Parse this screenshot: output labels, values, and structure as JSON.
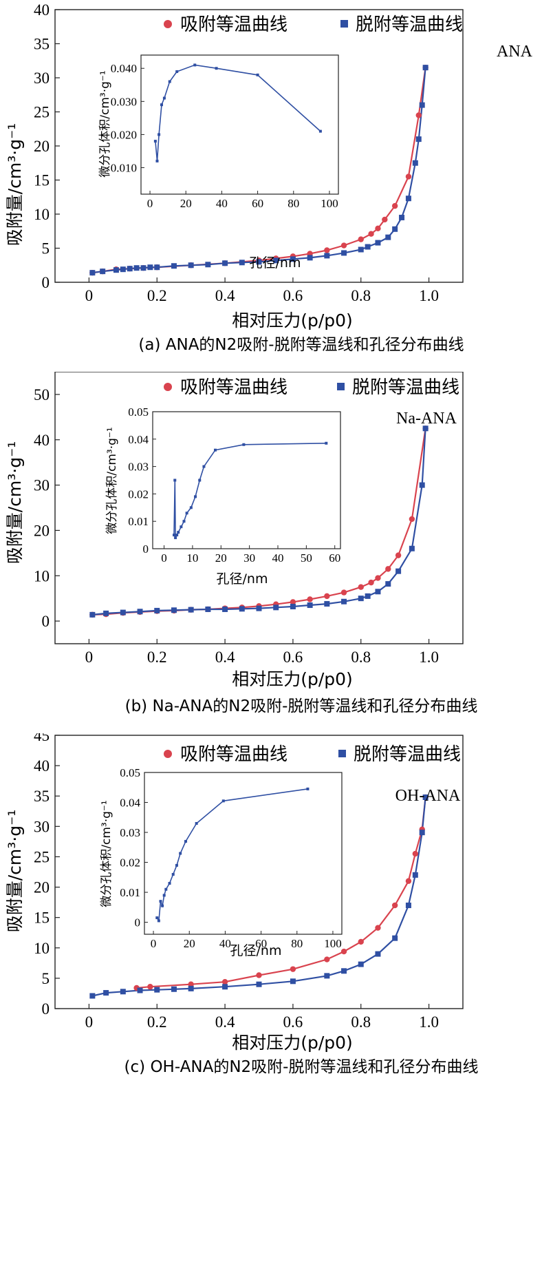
{
  "common": {
    "xlabel": "相对压力(p/p0)",
    "ylabel": "吸附量/cm³·g⁻¹",
    "inset_xlabel": "孔径/nm",
    "inset_ylabel": "微分孔体积/cm³·g⁻¹",
    "legend_adsorption": "吸附等温曲线",
    "legend_desorption": "脱附等温曲线",
    "color_adsorption": "#d9434e",
    "color_desorption": "#2f4fa3",
    "xticks": [
      "0",
      "0.2",
      "0.4",
      "0.6",
      "0.8",
      "1.0"
    ]
  },
  "chart_data": [
    {
      "type": "line",
      "panel": "a",
      "sample_label": "ANA",
      "caption": "(a) ANA的N2吸附-脱附等温线和孔径分布曲线",
      "xlim": [
        -0.1,
        1.1
      ],
      "ylim": [
        0,
        40
      ],
      "yticks": [
        0,
        5,
        10,
        15,
        20,
        25,
        30,
        35,
        40
      ],
      "series": [
        {
          "name": "吸附等温曲线",
          "x": [
            0.01,
            0.04,
            0.08,
            0.12,
            0.16,
            0.2,
            0.3,
            0.4,
            0.5,
            0.55,
            0.6,
            0.65,
            0.7,
            0.75,
            0.8,
            0.83,
            0.85,
            0.87,
            0.9,
            0.94,
            0.97,
            0.99
          ],
          "y": [
            1.4,
            1.6,
            1.9,
            2.0,
            2.1,
            2.2,
            2.5,
            2.8,
            3.2,
            3.5,
            3.8,
            4.2,
            4.7,
            5.4,
            6.3,
            7.1,
            7.9,
            9.2,
            11.2,
            15.5,
            24.5,
            31.5
          ]
        },
        {
          "name": "脱附等温曲线",
          "x": [
            0.99,
            0.98,
            0.97,
            0.96,
            0.94,
            0.92,
            0.9,
            0.88,
            0.85,
            0.82,
            0.8,
            0.75,
            0.7,
            0.65,
            0.6,
            0.55,
            0.5,
            0.45,
            0.4,
            0.35,
            0.3,
            0.25,
            0.2,
            0.18,
            0.16,
            0.14,
            0.12,
            0.1,
            0.08,
            0.04,
            0.01
          ],
          "y": [
            31.5,
            26,
            21,
            17.5,
            12.3,
            9.5,
            7.8,
            6.6,
            5.8,
            5.2,
            4.8,
            4.3,
            3.9,
            3.6,
            3.4,
            3.2,
            3.0,
            2.9,
            2.8,
            2.6,
            2.5,
            2.4,
            2.2,
            2.2,
            2.1,
            2.1,
            2.0,
            1.9,
            1.8,
            1.6,
            1.4
          ]
        }
      ],
      "inset": {
        "xlim": [
          -5,
          105
        ],
        "ylim": [
          0.002,
          0.044
        ],
        "xticks": [
          0,
          20,
          40,
          60,
          80,
          100
        ],
        "yticks": [
          0.01,
          0.02,
          0.03,
          0.04
        ],
        "ytick_labels": [
          "0.010",
          "0.020",
          "0.030",
          "0.040"
        ],
        "x": [
          3,
          4,
          5,
          6.5,
          8,
          11,
          15,
          25,
          37,
          60,
          95
        ],
        "y": [
          0.018,
          0.012,
          0.02,
          0.029,
          0.031,
          0.036,
          0.039,
          0.041,
          0.04,
          0.038,
          0.021
        ]
      }
    },
    {
      "type": "line",
      "panel": "b",
      "sample_label": "Na-ANA",
      "caption": "(b) Na-ANA的N2吸附-脱附等温线和孔径分布曲线",
      "xlim": [
        -0.1,
        1.1
      ],
      "ylim": [
        -5,
        55
      ],
      "yticks": [
        0,
        10,
        20,
        30,
        40,
        50
      ],
      "series": [
        {
          "name": "吸附等温曲线",
          "x": [
            0.01,
            0.05,
            0.1,
            0.15,
            0.2,
            0.25,
            0.3,
            0.35,
            0.4,
            0.45,
            0.5,
            0.55,
            0.6,
            0.65,
            0.7,
            0.75,
            0.8,
            0.83,
            0.85,
            0.88,
            0.91,
            0.95,
            0.99
          ],
          "y": [
            1.4,
            1.5,
            1.8,
            2.0,
            2.2,
            2.3,
            2.5,
            2.6,
            2.8,
            3.0,
            3.3,
            3.7,
            4.2,
            4.8,
            5.5,
            6.3,
            7.5,
            8.5,
            9.5,
            11.5,
            14.5,
            22.5,
            42.5
          ]
        },
        {
          "name": "脱附等温曲线",
          "x": [
            0.99,
            0.98,
            0.95,
            0.91,
            0.88,
            0.85,
            0.82,
            0.8,
            0.75,
            0.7,
            0.65,
            0.6,
            0.55,
            0.5,
            0.45,
            0.4,
            0.35,
            0.3,
            0.25,
            0.2,
            0.15,
            0.1,
            0.05,
            0.01
          ],
          "y": [
            42.5,
            30,
            16,
            11,
            8.2,
            6.5,
            5.5,
            5.0,
            4.3,
            3.8,
            3.5,
            3.2,
            3.0,
            2.8,
            2.7,
            2.6,
            2.6,
            2.5,
            2.4,
            2.3,
            2.1,
            1.9,
            1.7,
            1.4
          ]
        }
      ],
      "inset": {
        "xlim": [
          -4,
          62
        ],
        "ylim": [
          0,
          0.05
        ],
        "xticks": [
          0,
          10,
          20,
          30,
          40,
          50,
          60
        ],
        "yticks": [
          0,
          0.01,
          0.02,
          0.03,
          0.04,
          0.05
        ],
        "ytick_labels": [
          "0",
          "0.01",
          "0.02",
          "0.03",
          "0.04",
          "0.05"
        ],
        "x": [
          3.5,
          3.8,
          4.0,
          4.5,
          5.0,
          6.0,
          7.0,
          8.0,
          9.5,
          11,
          12.5,
          14,
          18,
          28,
          57
        ],
        "y": [
          0.005,
          0.025,
          0.004,
          0.005,
          0.006,
          0.008,
          0.01,
          0.013,
          0.015,
          0.019,
          0.025,
          0.03,
          0.036,
          0.038,
          0.0385
        ]
      }
    },
    {
      "type": "line",
      "panel": "c",
      "sample_label": "OH-ANA",
      "caption": "(c) OH-ANA的N2吸附-脱附等温线和孔径分布曲线",
      "xlim": [
        -0.1,
        1.1
      ],
      "ylim": [
        0,
        45
      ],
      "yticks": [
        0,
        5,
        10,
        15,
        20,
        25,
        30,
        35,
        40,
        45
      ],
      "series": [
        {
          "name": "吸附等温曲线",
          "x": [
            0.14,
            0.18,
            0.3,
            0.4,
            0.5,
            0.6,
            0.7,
            0.75,
            0.8,
            0.85,
            0.9,
            0.94,
            0.96,
            0.98,
            0.99
          ],
          "y": [
            3.4,
            3.6,
            4.0,
            4.4,
            5.5,
            6.5,
            8.1,
            9.4,
            11.0,
            13.3,
            17.0,
            21.0,
            25.5,
            29.5,
            34.8
          ]
        },
        {
          "name": "脱附等温曲线",
          "x": [
            0.99,
            0.98,
            0.96,
            0.94,
            0.9,
            0.85,
            0.8,
            0.75,
            0.7,
            0.6,
            0.5,
            0.4,
            0.3,
            0.25,
            0.2,
            0.15,
            0.1,
            0.05,
            0.01
          ],
          "y": [
            34.8,
            29,
            22,
            17,
            11.6,
            9.0,
            7.3,
            6.2,
            5.4,
            4.5,
            4.0,
            3.6,
            3.3,
            3.2,
            3.1,
            3.0,
            2.8,
            2.6,
            2.1
          ]
        }
      ],
      "inset": {
        "xlim": [
          -5,
          105
        ],
        "ylim": [
          -0.004,
          0.05
        ],
        "xticks": [
          0,
          20,
          40,
          60,
          80,
          100
        ],
        "yticks": [
          0,
          0.01,
          0.02,
          0.03,
          0.04,
          0.05
        ],
        "ytick_labels": [
          "0",
          "0.01",
          "0.02",
          "0.03",
          "0.04",
          "0.05"
        ],
        "x": [
          2,
          3,
          4,
          5,
          6,
          7,
          9,
          11,
          13,
          15,
          18,
          24,
          39,
          86
        ],
        "y": [
          0.0015,
          0.0005,
          0.007,
          0.0055,
          0.009,
          0.011,
          0.013,
          0.016,
          0.019,
          0.023,
          0.027,
          0.033,
          0.0405,
          0.0445
        ]
      }
    }
  ]
}
